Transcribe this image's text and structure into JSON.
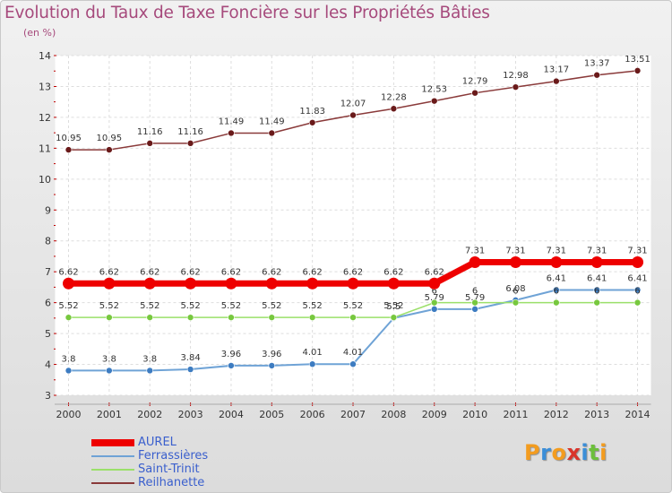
{
  "header": {
    "title": "Evolution du Taux de Taxe Foncière sur les Propriétés Bâties",
    "subtitle": "(en %)"
  },
  "brand": {
    "letters": [
      "P",
      "r",
      "o",
      "x",
      "i",
      "t",
      "i"
    ],
    "colors": [
      "#f39c1f",
      "#3b8ed8",
      "#f39c1f",
      "#d9342b",
      "#3b8ed8",
      "#6cbf3b",
      "#f39c1f"
    ]
  },
  "chart_data": {
    "type": "line",
    "title": "Evolution du Taux de Taxe Foncière sur les Propriétés Bâties",
    "ylabel": "(en %)",
    "xlabel": "",
    "ylim": [
      3,
      14
    ],
    "grid": true,
    "legend_position": "bottom-left",
    "x": [
      "2000",
      "2001",
      "2002",
      "2003",
      "2004",
      "2005",
      "2006",
      "2007",
      "2008",
      "2009",
      "2010",
      "2011",
      "2012",
      "2013",
      "2014"
    ],
    "yticks": [
      "3",
      "4",
      "5",
      "6",
      "7",
      "8",
      "9",
      "10",
      "11",
      "12",
      "13",
      "14"
    ],
    "series": [
      {
        "name": "Reilhanette",
        "color": "#8a3a3a",
        "marker": "#6a1a1a",
        "values": [
          10.95,
          10.95,
          11.16,
          11.16,
          11.49,
          11.49,
          11.83,
          12.07,
          12.28,
          12.53,
          12.79,
          12.98,
          13.17,
          13.37,
          13.51
        ],
        "labels": [
          "10.95",
          "10.95",
          "11.16",
          "11.16",
          "11.49",
          "11.49",
          "11.83",
          "12.07",
          "12.28",
          "12.53",
          "12.79",
          "12.98",
          "13.17",
          "13.37",
          "13.51"
        ]
      },
      {
        "name": "Ferrassières",
        "color": "#6fa3d6",
        "marker": "#3d7cc1",
        "values": [
          3.8,
          3.8,
          3.8,
          3.84,
          3.96,
          3.96,
          4.01,
          4.01,
          5.5,
          5.79,
          5.79,
          6.08,
          6.41,
          6.41,
          6.41
        ],
        "labels": [
          "3.8",
          "3.8",
          "3.8",
          "3.84",
          "3.96",
          "3.96",
          "4.01",
          "4.01",
          "5.5",
          "5.79",
          "5.79",
          "6.08",
          "6.41",
          "6.41",
          "6.41"
        ]
      },
      {
        "name": "Saint-Trinit",
        "color": "#9be06a",
        "marker": "#77c83e",
        "values": [
          5.52,
          5.52,
          5.52,
          5.52,
          5.52,
          5.52,
          5.52,
          5.52,
          5.52,
          6,
          6,
          6,
          6,
          6,
          6
        ],
        "labels": [
          "5.52",
          "5.52",
          "5.52",
          "5.52",
          "5.52",
          "5.52",
          "5.52",
          "5.52",
          "5.52",
          "6",
          "6",
          "6",
          "6",
          "6",
          "6"
        ]
      },
      {
        "name": "AUREL",
        "color": "#ee0000",
        "marker": "#ee0000",
        "values": [
          6.62,
          6.62,
          6.62,
          6.62,
          6.62,
          6.62,
          6.62,
          6.62,
          6.62,
          6.62,
          7.31,
          7.31,
          7.31,
          7.31,
          7.31
        ],
        "labels": [
          "6.62",
          "6.62",
          "6.62",
          "6.62",
          "6.62",
          "6.62",
          "6.62",
          "6.62",
          "6.62",
          "6.62",
          "7.31",
          "7.31",
          "7.31",
          "7.31",
          "7.31"
        ]
      }
    ],
    "legend": [
      "AUREL",
      "Ferrassières",
      "Saint-Trinit",
      "Reilhanette"
    ]
  }
}
